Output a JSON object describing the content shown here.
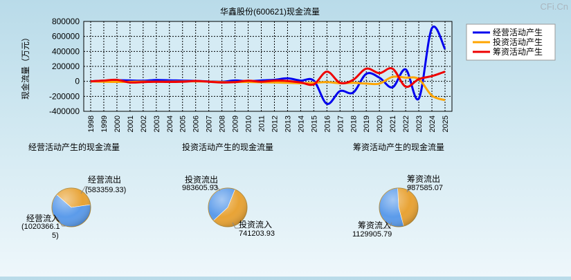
{
  "watermark": "CFi.Cn",
  "chart_data": [
    {
      "type": "line",
      "title": "华鑫股份(600621)现金流量",
      "ylabel": "现金流量（万元）",
      "ylim": [
        -400000,
        800000
      ],
      "yticks": [
        800000,
        600000,
        400000,
        200000,
        0,
        -200000,
        -400000
      ],
      "x": [
        "1998",
        "1999",
        "2000",
        "2001",
        "2002",
        "2003",
        "2004",
        "2005",
        "2006",
        "2007",
        "2008",
        "2009",
        "2010",
        "2011",
        "2012",
        "2013",
        "2014",
        "2015",
        "2016",
        "2017",
        "2018",
        "2019",
        "2020",
        "2021",
        "2022",
        "2023",
        "2024",
        "2025"
      ],
      "grid": true,
      "legend_position": "top-right",
      "series": [
        {
          "name": "经营活动产生",
          "color": "#0000ee",
          "values": [
            0,
            10000,
            15000,
            12000,
            8000,
            18000,
            14000,
            10000,
            6000,
            0,
            -5000,
            12000,
            2000,
            12000,
            20000,
            40000,
            10000,
            10000,
            -300000,
            -130000,
            -150000,
            100000,
            50000,
            -80000,
            160000,
            -230000,
            710000,
            430000
          ]
        },
        {
          "name": "投资活动产生",
          "color": "#ffa500",
          "values": [
            0,
            -5000,
            -8000,
            -6000,
            -3000,
            -5000,
            -4000,
            -2000,
            0,
            -3000,
            -10000,
            -10000,
            -8000,
            -12000,
            -15000,
            -20000,
            -25000,
            -20000,
            -10000,
            -25000,
            -20000,
            -30000,
            -30000,
            60000,
            50000,
            30000,
            -190000,
            -250000
          ]
        },
        {
          "name": "筹资活动产生",
          "color": "#ee0000",
          "values": [
            0,
            10000,
            20000,
            -15000,
            -10000,
            -5000,
            -8000,
            -6000,
            5000,
            -5000,
            -15000,
            -10000,
            8000,
            -5000,
            10000,
            5000,
            -15000,
            -40000,
            130000,
            -20000,
            20000,
            170000,
            110000,
            170000,
            -70000,
            30000,
            70000,
            130000
          ]
        }
      ]
    },
    {
      "type": "pie",
      "title": "经营活动产生的现金流量",
      "slices": [
        {
          "label": "经营流出",
          "value": 583359.33,
          "value_text": "(583359.33)",
          "color": "#e8a335"
        },
        {
          "label": "经营流入",
          "value": 1020366.15,
          "value_text": "(1020366.1",
          "value_text2": "5)",
          "color": "#5b9bea"
        }
      ]
    },
    {
      "type": "pie",
      "title": "投资活动产生的现金流量",
      "slices": [
        {
          "label": "投资流出",
          "value": 983605.93,
          "value_text": "983605.93",
          "color": "#e8a335"
        },
        {
          "label": "投资流入",
          "value": 741203.93,
          "value_text": "741203.93",
          "color": "#5b9bea"
        }
      ]
    },
    {
      "type": "pie",
      "title": "筹资活动产生的现金流量",
      "slices": [
        {
          "label": "筹资流出",
          "value": 987585.07,
          "value_text": "987585.07",
          "color": "#e8a335"
        },
        {
          "label": "筹资流入",
          "value": 1129905.79,
          "value_text": "1129905.79",
          "color": "#5b9bea"
        }
      ]
    }
  ]
}
